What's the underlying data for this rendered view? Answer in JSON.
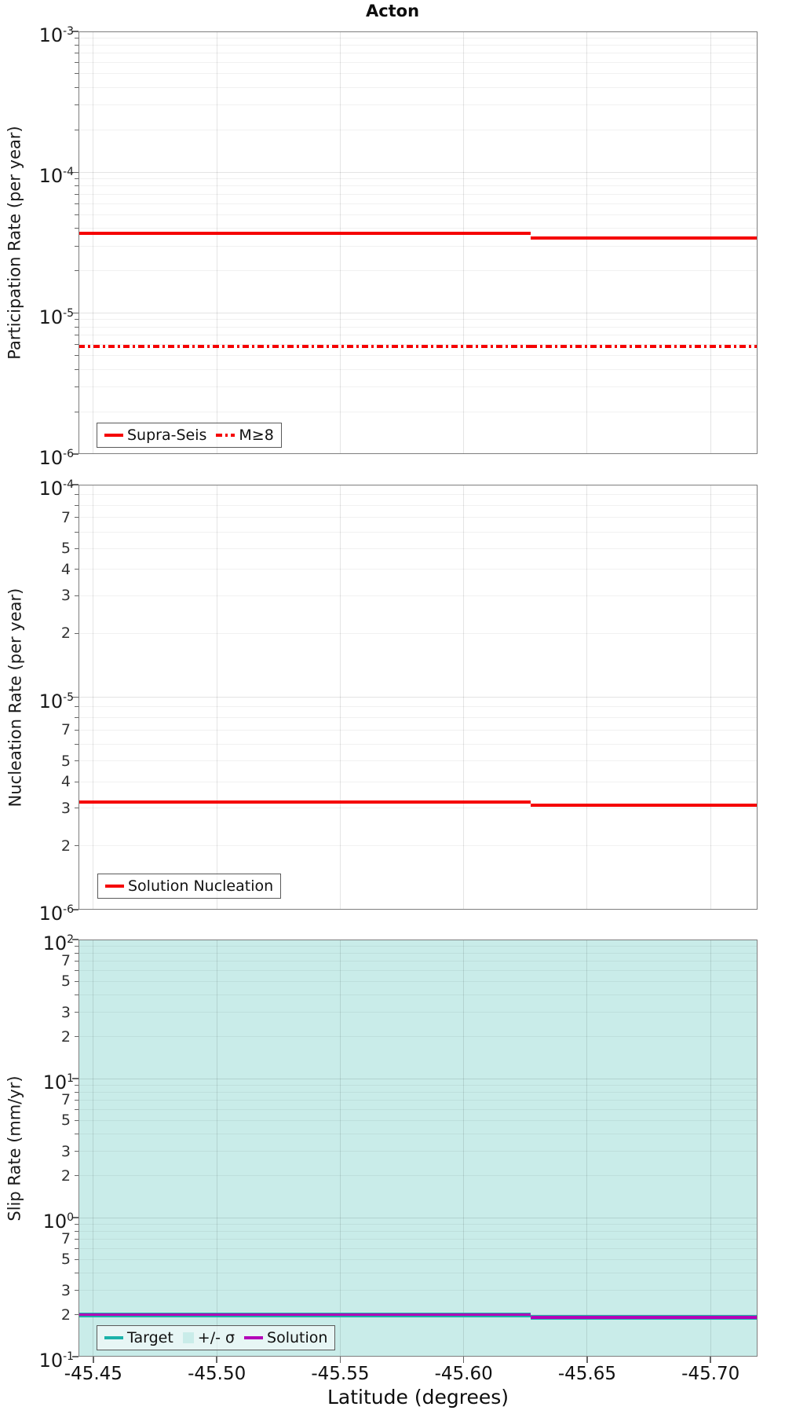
{
  "title": "Acton",
  "xlabel": "Latitude (degrees)",
  "x_axis": {
    "min": -45.444,
    "max": -45.719,
    "ticks": [
      {
        "value": -45.45,
        "label": "-45.45"
      },
      {
        "value": -45.5,
        "label": "-45.50"
      },
      {
        "value": -45.55,
        "label": "-45.55"
      },
      {
        "value": -45.6,
        "label": "-45.60"
      },
      {
        "value": -45.65,
        "label": "-45.65"
      },
      {
        "value": -45.7,
        "label": "-45.70"
      }
    ]
  },
  "step_latitude": -45.627,
  "colors": {
    "red": "#f50000",
    "teal": "#1cb2a9",
    "magenta": "#b303b8",
    "band": "#c9ece9",
    "axis": "#7e7e7e"
  },
  "chart_data": [
    {
      "type": "line",
      "ylabel": "Participation Rate (per year)",
      "yscale": "log",
      "ylim": [
        1e-06,
        0.001
      ],
      "ylim_exp": {
        "bottom": -6,
        "top": -3
      },
      "minor_tick_labels": [],
      "x_range": [
        -45.444,
        -45.719
      ],
      "grid": true,
      "series": [
        {
          "id": "supra-seis",
          "name": "Supra-Seis",
          "style": "solid",
          "color": "#f50000",
          "width": 4,
          "value_before_step": 3.7e-05,
          "value_after_step": 3.4e-05
        },
        {
          "id": "m-ge-8",
          "name": "M≥8",
          "style": "dashdot",
          "color": "#f50000",
          "width": 3.5,
          "value_before_step": 5.8e-06,
          "value_after_step": 5.8e-06
        }
      ],
      "legend": [
        {
          "swatch": "line",
          "style": "solid",
          "color": "#f50000",
          "label": "Supra-Seis"
        },
        {
          "swatch": "line",
          "style": "dashdot",
          "color": "#f50000",
          "label": "M≥8"
        }
      ]
    },
    {
      "type": "line",
      "ylabel": "Nucleation Rate (per year)",
      "yscale": "log",
      "ylim": [
        1e-06,
        0.0001
      ],
      "ylim_exp": {
        "bottom": -6,
        "top": -4
      },
      "minor_tick_labels": [
        7,
        5,
        4,
        3,
        2
      ],
      "x_range": [
        -45.444,
        -45.719
      ],
      "grid": true,
      "series": [
        {
          "id": "solution-nucleation",
          "name": "Solution Nucleation",
          "style": "solid",
          "color": "#f50000",
          "width": 4,
          "value_before_step": 3.2e-06,
          "value_after_step": 3.1e-06
        }
      ],
      "legend": [
        {
          "swatch": "line",
          "style": "solid",
          "color": "#f50000",
          "label": "Solution Nucleation"
        }
      ]
    },
    {
      "type": "line",
      "ylabel": "Slip Rate (mm/yr)",
      "yscale": "log",
      "ylim": [
        0.1,
        100
      ],
      "ylim_exp": {
        "bottom": -1,
        "top": 2
      },
      "minor_tick_labels": [
        7,
        5,
        3,
        2
      ],
      "x_range": [
        -45.444,
        -45.719
      ],
      "grid": true,
      "band": {
        "name": "+/- σ",
        "color": "#c9ece9",
        "covers_full_axis_range": true
      },
      "series": [
        {
          "id": "target",
          "name": "Target",
          "style": "solid",
          "color": "#1cb2a9",
          "width": 6,
          "value_before_step": 0.2,
          "value_after_step": 0.192
        },
        {
          "id": "solution",
          "name": "Solution",
          "style": "solid",
          "color": "#b303b8",
          "width": 3.5,
          "value_before_step": 0.2,
          "value_after_step": 0.192
        }
      ],
      "legend": [
        {
          "swatch": "line",
          "style": "solid",
          "color": "#1cb2a9",
          "label": "Target"
        },
        {
          "swatch": "patch",
          "style": "solid",
          "color": "#c9ece9",
          "label": "+/- σ"
        },
        {
          "swatch": "line",
          "style": "solid",
          "color": "#b303b8",
          "label": "Solution"
        }
      ]
    }
  ]
}
